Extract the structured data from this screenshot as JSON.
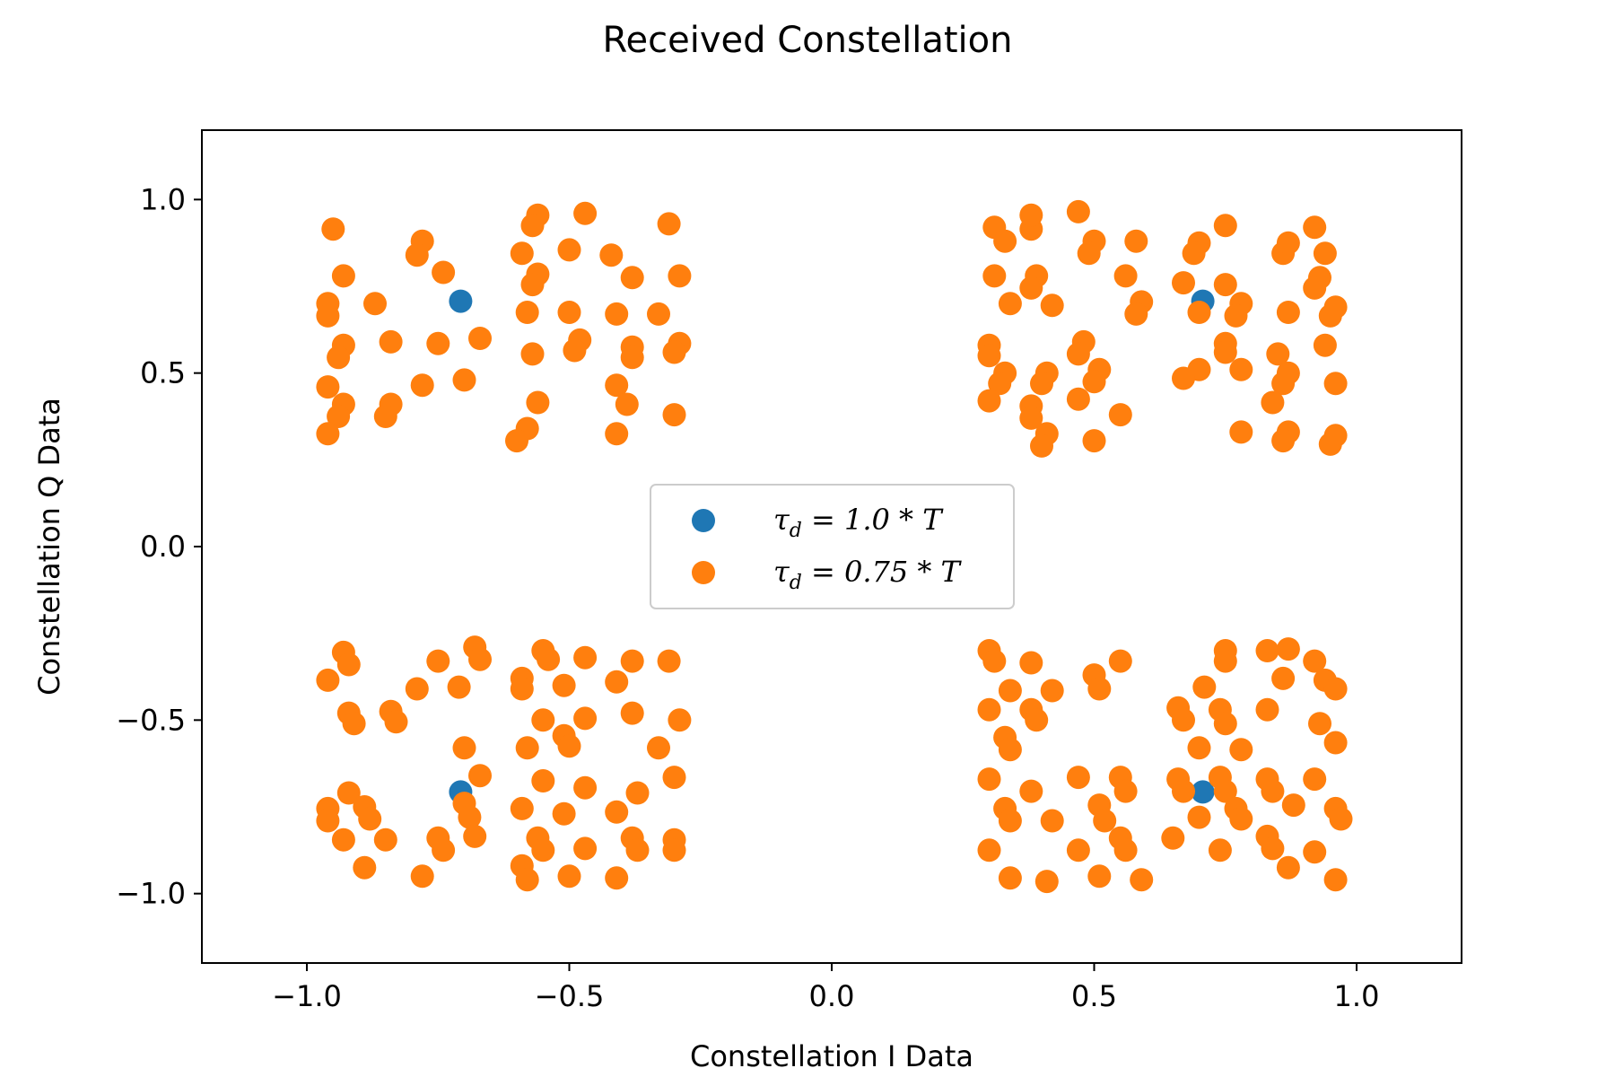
{
  "chart_data": {
    "type": "scatter",
    "title": "Received Constellation",
    "xlabel": "Constellation I Data",
    "ylabel": "Constellation Q Data",
    "xlim": [
      -1.2,
      1.2
    ],
    "ylim": [
      -1.2,
      1.2
    ],
    "xticks": [
      -1.0,
      -0.5,
      0.0,
      0.5,
      1.0
    ],
    "yticks": [
      -1.0,
      -0.5,
      0.0,
      0.5,
      1.0
    ],
    "xtick_labels": [
      "−1.0",
      "−0.5",
      "0.0",
      "0.5",
      "1.0"
    ],
    "ytick_labels": [
      "−1.0",
      "−0.5",
      "0.0",
      "0.5",
      "1.0"
    ],
    "grid": false,
    "legend_position": "center",
    "series": [
      {
        "name": "τ_d = 1.0 * T",
        "legend_main": "τ",
        "legend_sub": "d",
        "legend_rest": " = 1.0 * T",
        "color": "#1f77b4",
        "points": [
          [
            -0.707,
            0.707
          ],
          [
            0.707,
            0.707
          ],
          [
            -0.707,
            -0.707
          ],
          [
            0.707,
            -0.707
          ]
        ]
      },
      {
        "name": "τ_d = 0.75 * T",
        "legend_main": "τ",
        "legend_sub": "d",
        "legend_rest": " = 0.75 * T",
        "color": "#ff7f0e",
        "points": [
          [
            -0.95,
            0.915
          ],
          [
            -0.93,
            0.78
          ],
          [
            -0.96,
            0.7
          ],
          [
            -0.96,
            0.665
          ],
          [
            -0.87,
            0.7
          ],
          [
            -0.93,
            0.58
          ],
          [
            -0.94,
            0.545
          ],
          [
            -0.84,
            0.59
          ],
          [
            -0.96,
            0.46
          ],
          [
            -0.93,
            0.41
          ],
          [
            -0.94,
            0.375
          ],
          [
            -0.96,
            0.325
          ],
          [
            -0.84,
            0.41
          ],
          [
            -0.85,
            0.375
          ],
          [
            -0.78,
            0.88
          ],
          [
            -0.79,
            0.84
          ],
          [
            -0.74,
            0.79
          ],
          [
            -0.75,
            0.585
          ],
          [
            -0.78,
            0.465
          ],
          [
            -0.7,
            0.48
          ],
          [
            -0.67,
            0.6
          ],
          [
            -0.59,
            0.845
          ],
          [
            -0.56,
            0.955
          ],
          [
            -0.57,
            0.925
          ],
          [
            -0.47,
            0.96
          ],
          [
            -0.5,
            0.855
          ],
          [
            -0.56,
            0.785
          ],
          [
            -0.57,
            0.755
          ],
          [
            -0.58,
            0.675
          ],
          [
            -0.57,
            0.555
          ],
          [
            -0.56,
            0.415
          ],
          [
            -0.58,
            0.34
          ],
          [
            -0.6,
            0.305
          ],
          [
            -0.5,
            0.675
          ],
          [
            -0.48,
            0.595
          ],
          [
            -0.49,
            0.565
          ],
          [
            -0.42,
            0.84
          ],
          [
            -0.38,
            0.775
          ],
          [
            -0.41,
            0.67
          ],
          [
            -0.38,
            0.575
          ],
          [
            -0.38,
            0.545
          ],
          [
            -0.41,
            0.465
          ],
          [
            -0.39,
            0.41
          ],
          [
            -0.41,
            0.325
          ],
          [
            -0.31,
            0.93
          ],
          [
            -0.29,
            0.78
          ],
          [
            -0.33,
            0.67
          ],
          [
            -0.29,
            0.585
          ],
          [
            -0.3,
            0.56
          ],
          [
            -0.3,
            0.38
          ],
          [
            0.31,
            0.92
          ],
          [
            0.33,
            0.88
          ],
          [
            0.38,
            0.915
          ],
          [
            0.38,
            0.955
          ],
          [
            0.47,
            0.965
          ],
          [
            0.5,
            0.88
          ],
          [
            0.49,
            0.845
          ],
          [
            0.58,
            0.88
          ],
          [
            0.31,
            0.78
          ],
          [
            0.39,
            0.78
          ],
          [
            0.38,
            0.745
          ],
          [
            0.34,
            0.7
          ],
          [
            0.42,
            0.695
          ],
          [
            0.56,
            0.78
          ],
          [
            0.59,
            0.705
          ],
          [
            0.58,
            0.67
          ],
          [
            0.3,
            0.58
          ],
          [
            0.3,
            0.55
          ],
          [
            0.33,
            0.5
          ],
          [
            0.32,
            0.47
          ],
          [
            0.3,
            0.42
          ],
          [
            0.38,
            0.405
          ],
          [
            0.38,
            0.37
          ],
          [
            0.41,
            0.325
          ],
          [
            0.4,
            0.29
          ],
          [
            0.41,
            0.5
          ],
          [
            0.4,
            0.47
          ],
          [
            0.48,
            0.59
          ],
          [
            0.47,
            0.555
          ],
          [
            0.51,
            0.51
          ],
          [
            0.5,
            0.475
          ],
          [
            0.47,
            0.425
          ],
          [
            0.55,
            0.38
          ],
          [
            0.5,
            0.305
          ],
          [
            0.7,
            0.875
          ],
          [
            0.69,
            0.845
          ],
          [
            0.75,
            0.925
          ],
          [
            0.67,
            0.76
          ],
          [
            0.75,
            0.755
          ],
          [
            0.7,
            0.675
          ],
          [
            0.78,
            0.7
          ],
          [
            0.77,
            0.665
          ],
          [
            0.75,
            0.585
          ],
          [
            0.75,
            0.56
          ],
          [
            0.7,
            0.51
          ],
          [
            0.67,
            0.485
          ],
          [
            0.78,
            0.51
          ],
          [
            0.78,
            0.33
          ],
          [
            0.86,
            0.845
          ],
          [
            0.87,
            0.875
          ],
          [
            0.92,
            0.92
          ],
          [
            0.94,
            0.845
          ],
          [
            0.93,
            0.775
          ],
          [
            0.92,
            0.745
          ],
          [
            0.96,
            0.69
          ],
          [
            0.95,
            0.665
          ],
          [
            0.87,
            0.675
          ],
          [
            0.85,
            0.555
          ],
          [
            0.94,
            0.58
          ],
          [
            0.87,
            0.5
          ],
          [
            0.86,
            0.47
          ],
          [
            0.84,
            0.415
          ],
          [
            0.87,
            0.33
          ],
          [
            0.86,
            0.305
          ],
          [
            0.96,
            0.32
          ],
          [
            0.95,
            0.295
          ],
          [
            0.96,
            0.47
          ],
          [
            -0.96,
            -0.385
          ],
          [
            -0.93,
            -0.305
          ],
          [
            -0.92,
            -0.34
          ],
          [
            -0.92,
            -0.48
          ],
          [
            -0.91,
            -0.51
          ],
          [
            -0.92,
            -0.71
          ],
          [
            -0.96,
            -0.755
          ],
          [
            -0.96,
            -0.79
          ],
          [
            -0.93,
            -0.845
          ],
          [
            -0.89,
            -0.925
          ],
          [
            -0.89,
            -0.75
          ],
          [
            -0.88,
            -0.785
          ],
          [
            -0.85,
            -0.845
          ],
          [
            -0.84,
            -0.475
          ],
          [
            -0.83,
            -0.505
          ],
          [
            -0.79,
            -0.41
          ],
          [
            -0.75,
            -0.33
          ],
          [
            -0.71,
            -0.405
          ],
          [
            -0.68,
            -0.29
          ],
          [
            -0.67,
            -0.325
          ],
          [
            -0.7,
            -0.58
          ],
          [
            -0.67,
            -0.66
          ],
          [
            -0.7,
            -0.74
          ],
          [
            -0.69,
            -0.78
          ],
          [
            -0.68,
            -0.835
          ],
          [
            -0.75,
            -0.84
          ],
          [
            -0.74,
            -0.875
          ],
          [
            -0.78,
            -0.95
          ],
          [
            -0.59,
            -0.38
          ],
          [
            -0.59,
            -0.41
          ],
          [
            -0.55,
            -0.3
          ],
          [
            -0.54,
            -0.325
          ],
          [
            -0.47,
            -0.32
          ],
          [
            -0.51,
            -0.4
          ],
          [
            -0.55,
            -0.5
          ],
          [
            -0.58,
            -0.58
          ],
          [
            -0.51,
            -0.545
          ],
          [
            -0.5,
            -0.575
          ],
          [
            -0.47,
            -0.495
          ],
          [
            -0.55,
            -0.675
          ],
          [
            -0.59,
            -0.755
          ],
          [
            -0.56,
            -0.84
          ],
          [
            -0.55,
            -0.875
          ],
          [
            -0.59,
            -0.92
          ],
          [
            -0.58,
            -0.96
          ],
          [
            -0.51,
            -0.77
          ],
          [
            -0.47,
            -0.695
          ],
          [
            -0.47,
            -0.87
          ],
          [
            -0.5,
            -0.95
          ],
          [
            -0.41,
            -0.39
          ],
          [
            -0.38,
            -0.33
          ],
          [
            -0.38,
            -0.48
          ],
          [
            -0.33,
            -0.58
          ],
          [
            -0.37,
            -0.71
          ],
          [
            -0.41,
            -0.765
          ],
          [
            -0.38,
            -0.84
          ],
          [
            -0.37,
            -0.875
          ],
          [
            -0.41,
            -0.955
          ],
          [
            -0.31,
            -0.33
          ],
          [
            -0.29,
            -0.5
          ],
          [
            -0.3,
            -0.665
          ],
          [
            -0.3,
            -0.845
          ],
          [
            -0.3,
            -0.875
          ],
          [
            0.3,
            -0.3
          ],
          [
            0.31,
            -0.33
          ],
          [
            0.3,
            -0.47
          ],
          [
            0.34,
            -0.415
          ],
          [
            0.38,
            -0.335
          ],
          [
            0.42,
            -0.415
          ],
          [
            0.33,
            -0.55
          ],
          [
            0.34,
            -0.585
          ],
          [
            0.38,
            -0.47
          ],
          [
            0.39,
            -0.5
          ],
          [
            0.3,
            -0.67
          ],
          [
            0.33,
            -0.755
          ],
          [
            0.34,
            -0.79
          ],
          [
            0.3,
            -0.875
          ],
          [
            0.34,
            -0.955
          ],
          [
            0.38,
            -0.705
          ],
          [
            0.42,
            -0.79
          ],
          [
            0.41,
            -0.965
          ],
          [
            0.5,
            -0.37
          ],
          [
            0.51,
            -0.41
          ],
          [
            0.55,
            -0.33
          ],
          [
            0.47,
            -0.665
          ],
          [
            0.51,
            -0.745
          ],
          [
            0.52,
            -0.79
          ],
          [
            0.55,
            -0.665
          ],
          [
            0.56,
            -0.705
          ],
          [
            0.55,
            -0.84
          ],
          [
            0.56,
            -0.875
          ],
          [
            0.47,
            -0.875
          ],
          [
            0.51,
            -0.95
          ],
          [
            0.59,
            -0.96
          ],
          [
            0.75,
            -0.3
          ],
          [
            0.75,
            -0.33
          ],
          [
            0.71,
            -0.405
          ],
          [
            0.66,
            -0.465
          ],
          [
            0.67,
            -0.5
          ],
          [
            0.74,
            -0.47
          ],
          [
            0.75,
            -0.51
          ],
          [
            0.7,
            -0.58
          ],
          [
            0.78,
            -0.585
          ],
          [
            0.66,
            -0.67
          ],
          [
            0.67,
            -0.705
          ],
          [
            0.74,
            -0.665
          ],
          [
            0.75,
            -0.705
          ],
          [
            0.7,
            -0.78
          ],
          [
            0.77,
            -0.755
          ],
          [
            0.78,
            -0.785
          ],
          [
            0.65,
            -0.84
          ],
          [
            0.74,
            -0.875
          ],
          [
            0.83,
            -0.3
          ],
          [
            0.87,
            -0.295
          ],
          [
            0.92,
            -0.33
          ],
          [
            0.86,
            -0.38
          ],
          [
            0.94,
            -0.385
          ],
          [
            0.96,
            -0.41
          ],
          [
            0.83,
            -0.47
          ],
          [
            0.93,
            -0.51
          ],
          [
            0.96,
            -0.565
          ],
          [
            0.83,
            -0.67
          ],
          [
            0.84,
            -0.705
          ],
          [
            0.92,
            -0.67
          ],
          [
            0.88,
            -0.745
          ],
          [
            0.83,
            -0.835
          ],
          [
            0.84,
            -0.87
          ],
          [
            0.92,
            -0.88
          ],
          [
            0.87,
            -0.925
          ],
          [
            0.96,
            -0.755
          ],
          [
            0.97,
            -0.785
          ],
          [
            0.96,
            -0.96
          ]
        ]
      }
    ]
  }
}
